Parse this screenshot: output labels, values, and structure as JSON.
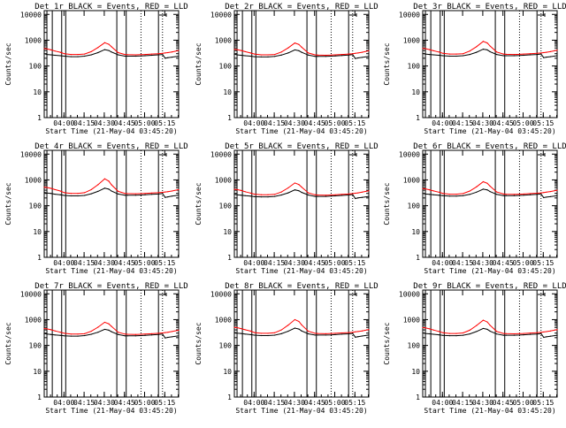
{
  "colors": {
    "events": "#000000",
    "lld": "#ff0000",
    "axes": "#000000",
    "background": "#ffffff"
  },
  "chart_data": [
    {
      "type": "line",
      "title": "Det 1r  BLACK = Events, RED = LLD",
      "ylabel": "Counts/sec",
      "xlabel": "Start Time (21-May-04 03:45:20)",
      "x_ticks": [
        "04:00",
        "04:15",
        "04:30",
        "04:45",
        "05:00",
        "05:15"
      ],
      "y_ticks": [
        "1",
        "10",
        "100",
        "1000",
        "10000"
      ],
      "yscale": "log",
      "ylim": [
        1,
        14000
      ],
      "x_minutes": [
        0,
        2,
        5,
        8,
        12,
        15,
        20,
        25,
        30,
        35,
        40,
        45,
        48,
        50,
        55,
        60,
        62,
        68,
        72,
        75,
        80,
        85,
        88,
        90,
        92,
        95,
        100
      ],
      "series": [
        {
          "name": "BLACK = Events",
          "values": [
            300,
            280,
            270,
            260,
            250,
            240,
            230,
            230,
            240,
            270,
            330,
            430,
            400,
            350,
            270,
            240,
            240,
            240,
            245,
            250,
            260,
            270,
            280,
            200,
            210,
            220,
            240
          ]
        },
        {
          "name": "RED = LLD",
          "values": [
            470,
            460,
            420,
            380,
            340,
            300,
            280,
            280,
            290,
            360,
            520,
            800,
            700,
            560,
            330,
            280,
            275,
            270,
            275,
            280,
            290,
            300,
            310,
            320,
            330,
            350,
            400
          ]
        }
      ]
    },
    {
      "type": "line",
      "title": "Det 2r  BLACK = Events, RED = LLD",
      "ylabel": "Counts/sec",
      "xlabel": "Start Time (21-May-04 03:45:20)",
      "x_ticks": [
        "04:00",
        "04:15",
        "04:30",
        "04:45",
        "05:00",
        "05:15"
      ],
      "y_ticks": [
        "1",
        "10",
        "100",
        "1000",
        "10000"
      ],
      "yscale": "log",
      "ylim": [
        1,
        14000
      ],
      "x_minutes": [
        0,
        2,
        5,
        8,
        12,
        15,
        20,
        25,
        30,
        35,
        40,
        45,
        48,
        50,
        55,
        60,
        62,
        68,
        72,
        75,
        80,
        85,
        88,
        90,
        92,
        95,
        100
      ],
      "series": [
        {
          "name": "BLACK = Events",
          "values": [
            290,
            270,
            260,
            250,
            240,
            230,
            225,
            225,
            235,
            265,
            320,
            420,
            390,
            340,
            265,
            235,
            235,
            235,
            240,
            245,
            255,
            265,
            275,
            195,
            205,
            215,
            235
          ]
        },
        {
          "name": "RED = LLD",
          "values": [
            440,
            430,
            400,
            360,
            320,
            290,
            270,
            270,
            280,
            350,
            500,
            780,
            680,
            540,
            320,
            270,
            265,
            260,
            265,
            270,
            280,
            290,
            300,
            310,
            320,
            340,
            390
          ]
        }
      ]
    },
    {
      "type": "line",
      "title": "Det 3r  BLACK = Events, RED = LLD",
      "ylabel": "Counts/sec",
      "xlabel": "Start Time (21-May-04 03:45:20)",
      "x_ticks": [
        "04:00",
        "04:15",
        "04:30",
        "04:45",
        "05:00",
        "05:15"
      ],
      "y_ticks": [
        "1",
        "10",
        "100",
        "1000",
        "10000"
      ],
      "yscale": "log",
      "ylim": [
        1,
        14000
      ],
      "x_minutes": [
        0,
        2,
        5,
        8,
        12,
        15,
        20,
        25,
        30,
        35,
        40,
        45,
        48,
        50,
        55,
        60,
        62,
        68,
        72,
        75,
        80,
        85,
        88,
        90,
        92,
        95,
        100
      ],
      "series": [
        {
          "name": "BLACK = Events",
          "values": [
            310,
            290,
            280,
            270,
            260,
            250,
            240,
            240,
            250,
            280,
            340,
            450,
            420,
            360,
            280,
            250,
            250,
            250,
            255,
            260,
            270,
            280,
            290,
            210,
            220,
            230,
            250
          ]
        },
        {
          "name": "RED = LLD",
          "values": [
            480,
            470,
            430,
            390,
            350,
            310,
            290,
            290,
            300,
            380,
            560,
            900,
            780,
            600,
            350,
            290,
            285,
            280,
            285,
            290,
            300,
            310,
            320,
            330,
            340,
            360,
            410
          ]
        }
      ]
    },
    {
      "type": "line",
      "title": "Det 4r  BLACK = Events, RED = LLD",
      "ylabel": "Counts/sec",
      "xlabel": "Start Time (21-May-04 03:45:20)",
      "x_ticks": [
        "04:00",
        "04:15",
        "04:30",
        "04:45",
        "05:00",
        "05:15"
      ],
      "y_ticks": [
        "1",
        "10",
        "100",
        "1000",
        "10000"
      ],
      "yscale": "log",
      "ylim": [
        1,
        14000
      ],
      "x_minutes": [
        0,
        2,
        5,
        8,
        12,
        15,
        20,
        25,
        30,
        35,
        40,
        45,
        48,
        50,
        55,
        60,
        62,
        68,
        72,
        75,
        80,
        85,
        88,
        90,
        92,
        95,
        100
      ],
      "series": [
        {
          "name": "BLACK = Events",
          "values": [
            330,
            310,
            300,
            280,
            265,
            250,
            240,
            240,
            250,
            290,
            360,
            480,
            440,
            370,
            285,
            255,
            255,
            255,
            260,
            265,
            275,
            285,
            295,
            210,
            220,
            235,
            255
          ]
        },
        {
          "name": "RED = LLD",
          "values": [
            520,
            510,
            470,
            420,
            370,
            320,
            300,
            300,
            320,
            420,
            650,
            1100,
            900,
            650,
            360,
            300,
            295,
            290,
            295,
            300,
            310,
            320,
            330,
            340,
            350,
            370,
            420
          ]
        }
      ]
    },
    {
      "type": "line",
      "title": "Det 5r  BLACK = Events, RED = LLD",
      "ylabel": "Counts/sec",
      "xlabel": "Start Time (21-May-04 03:45:20)",
      "x_ticks": [
        "04:00",
        "04:15",
        "04:30",
        "04:45",
        "05:00",
        "05:15"
      ],
      "y_ticks": [
        "1",
        "10",
        "100",
        "1000",
        "10000"
      ],
      "yscale": "log",
      "ylim": [
        1,
        14000
      ],
      "x_minutes": [
        0,
        2,
        5,
        8,
        12,
        15,
        20,
        25,
        30,
        35,
        40,
        45,
        48,
        50,
        55,
        60,
        62,
        68,
        72,
        75,
        80,
        85,
        88,
        90,
        92,
        95,
        100
      ],
      "series": [
        {
          "name": "BLACK = Events",
          "values": [
            280,
            265,
            255,
            245,
            235,
            225,
            220,
            220,
            230,
            260,
            315,
            410,
            380,
            330,
            260,
            230,
            230,
            230,
            235,
            240,
            250,
            260,
            270,
            190,
            200,
            210,
            230
          ]
        },
        {
          "name": "RED = LLD",
          "values": [
            430,
            420,
            390,
            350,
            310,
            280,
            265,
            265,
            275,
            340,
            490,
            760,
            660,
            530,
            315,
            265,
            260,
            255,
            260,
            265,
            275,
            285,
            295,
            305,
            315,
            335,
            380
          ]
        }
      ]
    },
    {
      "type": "line",
      "title": "Det 6r  BLACK = Events, RED = LLD",
      "ylabel": "Counts/sec",
      "xlabel": "Start Time (21-May-04 03:45:20)",
      "x_ticks": [
        "04:00",
        "04:15",
        "04:30",
        "04:45",
        "05:00",
        "05:15"
      ],
      "y_ticks": [
        "1",
        "10",
        "100",
        "1000",
        "10000"
      ],
      "yscale": "log",
      "ylim": [
        1,
        14000
      ],
      "x_minutes": [
        0,
        2,
        5,
        8,
        12,
        15,
        20,
        25,
        30,
        35,
        40,
        45,
        48,
        50,
        55,
        60,
        62,
        68,
        72,
        75,
        80,
        85,
        88,
        90,
        92,
        95,
        100
      ],
      "series": [
        {
          "name": "BLACK = Events",
          "values": [
            300,
            285,
            275,
            265,
            255,
            245,
            235,
            235,
            245,
            275,
            335,
            440,
            410,
            355,
            275,
            245,
            245,
            245,
            250,
            255,
            265,
            275,
            285,
            205,
            215,
            225,
            245
          ]
        },
        {
          "name": "RED = LLD",
          "values": [
            460,
            450,
            415,
            375,
            335,
            300,
            280,
            280,
            295,
            370,
            540,
            850,
            740,
            580,
            340,
            285,
            280,
            275,
            280,
            285,
            295,
            305,
            315,
            325,
            335,
            355,
            400
          ]
        }
      ]
    },
    {
      "type": "line",
      "title": "Det 7r  BLACK = Events, RED = LLD",
      "ylabel": "Counts/sec",
      "xlabel": "Start Time (21-May-04 03:45:20)",
      "x_ticks": [
        "04:00",
        "04:15",
        "04:30",
        "04:45",
        "05:00",
        "05:15"
      ],
      "y_ticks": [
        "1",
        "10",
        "100",
        "1000",
        "10000"
      ],
      "yscale": "log",
      "ylim": [
        1,
        14000
      ],
      "x_minutes": [
        0,
        2,
        5,
        8,
        12,
        15,
        20,
        25,
        30,
        35,
        40,
        45,
        48,
        50,
        55,
        60,
        62,
        68,
        72,
        75,
        80,
        85,
        88,
        90,
        92,
        95,
        100
      ],
      "series": [
        {
          "name": "BLACK = Events",
          "values": [
            290,
            275,
            265,
            255,
            245,
            235,
            230,
            230,
            240,
            270,
            325,
            420,
            390,
            340,
            265,
            235,
            235,
            235,
            240,
            245,
            255,
            265,
            275,
            195,
            205,
            215,
            235
          ]
        },
        {
          "name": "RED = LLD",
          "values": [
            450,
            440,
            405,
            365,
            325,
            295,
            275,
            275,
            285,
            355,
            510,
            790,
            690,
            550,
            325,
            275,
            270,
            265,
            270,
            275,
            285,
            295,
            305,
            315,
            325,
            345,
            390
          ]
        }
      ]
    },
    {
      "type": "line",
      "title": "Det 8r  BLACK = Events, RED = LLD",
      "ylabel": "Counts/sec",
      "xlabel": "Start Time (21-May-04 03:45:20)",
      "x_ticks": [
        "04:00",
        "04:15",
        "04:30",
        "04:45",
        "05:00",
        "05:15"
      ],
      "y_ticks": [
        "1",
        "10",
        "100",
        "1000",
        "10000"
      ],
      "yscale": "log",
      "ylim": [
        1,
        14000
      ],
      "x_minutes": [
        0,
        2,
        5,
        8,
        12,
        15,
        20,
        25,
        30,
        35,
        40,
        45,
        48,
        50,
        55,
        60,
        62,
        68,
        72,
        75,
        80,
        85,
        88,
        90,
        92,
        95,
        100
      ],
      "series": [
        {
          "name": "BLACK = Events",
          "values": [
            320,
            300,
            290,
            275,
            262,
            250,
            240,
            240,
            250,
            285,
            355,
            470,
            430,
            365,
            282,
            252,
            252,
            252,
            257,
            262,
            272,
            282,
            292,
            208,
            218,
            232,
            252
          ]
        },
        {
          "name": "RED = LLD",
          "values": [
            500,
            490,
            450,
            405,
            360,
            315,
            295,
            295,
            310,
            400,
            610,
            1000,
            850,
            630,
            355,
            295,
            290,
            285,
            290,
            295,
            305,
            315,
            325,
            335,
            345,
            365,
            415
          ]
        }
      ]
    },
    {
      "type": "line",
      "title": "Det 9r  BLACK = Events, RED = LLD",
      "ylabel": "Counts/sec",
      "xlabel": "Start Time (21-May-04 03:45:20)",
      "x_ticks": [
        "04:00",
        "04:15",
        "04:30",
        "04:45",
        "05:00",
        "05:15"
      ],
      "y_ticks": [
        "1",
        "10",
        "100",
        "1000",
        "10000"
      ],
      "yscale": "log",
      "ylim": [
        1,
        14000
      ],
      "x_minutes": [
        0,
        2,
        5,
        8,
        12,
        15,
        20,
        25,
        30,
        35,
        40,
        45,
        48,
        50,
        55,
        60,
        62,
        68,
        72,
        75,
        80,
        85,
        88,
        90,
        92,
        95,
        100
      ],
      "series": [
        {
          "name": "BLACK = Events",
          "values": [
            310,
            292,
            282,
            270,
            258,
            246,
            238,
            238,
            248,
            280,
            345,
            455,
            420,
            360,
            278,
            248,
            248,
            248,
            253,
            258,
            268,
            278,
            288,
            206,
            216,
            228,
            248
          ]
        },
        {
          "name": "RED = LLD",
          "values": [
            490,
            480,
            440,
            395,
            350,
            310,
            290,
            290,
            305,
            390,
            590,
            950,
            810,
            610,
            350,
            292,
            287,
            282,
            287,
            292,
            302,
            312,
            322,
            332,
            342,
            362,
            410
          ]
        }
      ]
    }
  ]
}
